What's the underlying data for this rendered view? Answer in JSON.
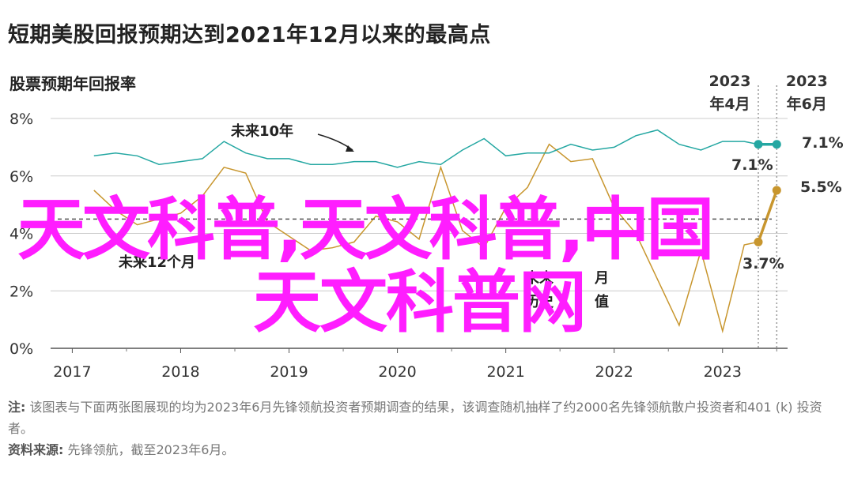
{
  "title": "短期美股回报预期达到2021年12月以来的最高点",
  "subtitle": "股票预期年回报率",
  "annotations": {
    "next10": "未来10年",
    "next12": "未来12个月",
    "apr_year": "2023",
    "apr_month": "年4月",
    "jun_year": "2023",
    "jun_month": "年6月",
    "teal_apr_label": "7.1%",
    "teal_jun_label": "7.1%",
    "gold_apr_label": "3.7%",
    "gold_jun_label": "5.5%",
    "hidden_label_1": "未来",
    "hidden_label_2": "月",
    "hidden_label_3": "历史",
    "hidden_label_4": "值"
  },
  "notes": {
    "note_head": "注:",
    "note_text": " 该图表与下面两张图展现的均为2023年6月先锋领航投资者预期调查的结果，该调查随机抽样了约2000名先锋领航散户投资者和401 (k) 投资者。",
    "source_head": "资料来源:",
    "source_text": " 先锋领航，截至2023年6月。"
  },
  "watermark": {
    "line1": "天文科普,天文科普,中国",
    "line2": "天文科普网"
  },
  "colors": {
    "teal": "#24a7a2",
    "gold": "#c8962e",
    "grid": "#cccccc",
    "watermark": "#ff1dff"
  },
  "chart_data": {
    "type": "line",
    "title": "股票预期年回报率",
    "ylim": [
      0,
      8
    ],
    "yticks": [
      "0%",
      "2%",
      "4%",
      "6%",
      "8%"
    ],
    "xticks": [
      "2017",
      "2018",
      "2019",
      "2020",
      "2021",
      "2022",
      "2023"
    ],
    "series": [
      {
        "name": "未来10年",
        "x": [
          2017.2,
          2017.4,
          2017.6,
          2017.8,
          2018.0,
          2018.2,
          2018.4,
          2018.6,
          2018.8,
          2019.0,
          2019.2,
          2019.4,
          2019.6,
          2019.8,
          2020.0,
          2020.2,
          2020.4,
          2020.6,
          2020.8,
          2021.0,
          2021.2,
          2021.4,
          2021.6,
          2021.8,
          2022.0,
          2022.2,
          2022.4,
          2022.6,
          2022.8,
          2023.0,
          2023.2,
          2023.33,
          2023.5
        ],
        "y": [
          6.7,
          6.8,
          6.7,
          6.4,
          6.5,
          6.6,
          7.2,
          6.8,
          6.6,
          6.6,
          6.4,
          6.4,
          6.5,
          6.5,
          6.3,
          6.5,
          6.4,
          6.9,
          7.3,
          6.7,
          6.8,
          6.8,
          7.1,
          6.9,
          7.0,
          7.4,
          7.6,
          7.1,
          6.9,
          7.2,
          7.2,
          7.1,
          7.1
        ]
      },
      {
        "name": "未来12个月",
        "x": [
          2017.2,
          2017.4,
          2017.6,
          2017.8,
          2018.0,
          2018.2,
          2018.4,
          2018.6,
          2018.8,
          2019.0,
          2019.2,
          2019.4,
          2019.6,
          2019.8,
          2020.0,
          2020.2,
          2020.4,
          2020.6,
          2020.8,
          2021.0,
          2021.2,
          2021.4,
          2021.6,
          2021.8,
          2022.0,
          2022.2,
          2022.4,
          2022.6,
          2022.8,
          2023.0,
          2023.2,
          2023.33,
          2023.5
        ],
        "y": [
          5.5,
          4.8,
          4.3,
          4.5,
          4.7,
          5.3,
          6.3,
          6.1,
          4.4,
          3.9,
          3.4,
          3.5,
          3.7,
          4.6,
          4.4,
          3.8,
          6.3,
          4.1,
          3.5,
          4.9,
          5.6,
          7.1,
          6.5,
          6.6,
          4.9,
          4.0,
          2.4,
          0.8,
          3.4,
          0.6,
          3.6,
          3.7,
          5.5
        ]
      }
    ],
    "end_labels": {
      "2023年4月": {
        "未来10年": 7.1,
        "未来12个月": 3.7
      },
      "2023年6月": {
        "未来10年": 7.1,
        "未来12个月": 5.5
      }
    }
  }
}
